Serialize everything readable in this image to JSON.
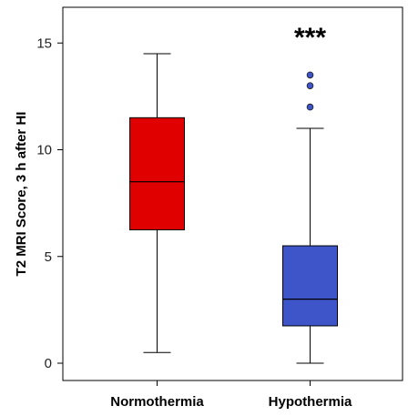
{
  "chart_data": {
    "type": "box",
    "title": "",
    "xlabel": "",
    "ylabel": "T2 MRI Score, 3 h after HI",
    "ylim": [
      -0.9,
      16.6
    ],
    "yticks": [
      0,
      5,
      10,
      15
    ],
    "grid": false,
    "legend": "none",
    "categories": [
      "Normothermia",
      "Hypothermia"
    ],
    "boxes": [
      {
        "name": "Normothermia",
        "whisker_low": 0.5,
        "q1": 6.25,
        "median": 8.5,
        "q3": 11.5,
        "whisker_high": 14.5,
        "outliers": [],
        "color": "#e00000"
      },
      {
        "name": "Hypothermia",
        "whisker_low": 0.0,
        "q1": 1.75,
        "median": 3.0,
        "q3": 5.5,
        "whisker_high": 11.0,
        "outliers": [
          12.0,
          13.0,
          13.5
        ],
        "color": "#3d55c9"
      }
    ],
    "annotations": [
      {
        "text": "***",
        "category": "Hypothermia",
        "y": 15.6
      }
    ]
  }
}
